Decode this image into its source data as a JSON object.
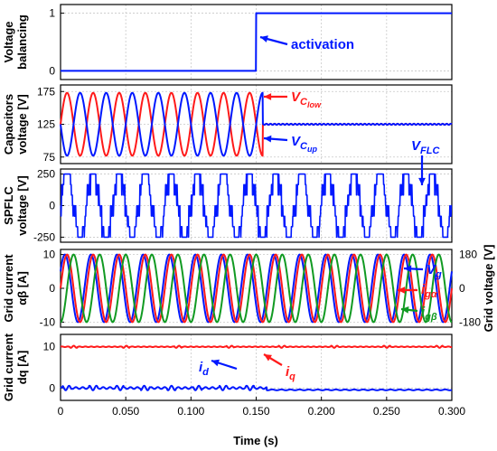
{
  "chart_data": {
    "type": "line",
    "xlabel": "Time (s)",
    "xlim": [
      0,
      0.3
    ],
    "xticks": [
      "0",
      "0.050",
      "0.100",
      "0.150",
      "0.200",
      "0.250",
      "0.300"
    ],
    "colors": {
      "blue": "#0018ff",
      "red": "#ff1a1a",
      "green": "#119a22"
    },
    "panels": [
      {
        "id": "voltage_balancing",
        "ylabel": [
          "Voltage",
          "balancing"
        ],
        "ylim": [
          -0.15,
          1.15
        ],
        "yticks": [
          "0",
          "1"
        ],
        "series": [
          {
            "color": "blue",
            "shape": "step",
            "step_time": 0.15,
            "before": 0,
            "after": 1
          }
        ],
        "annotation": {
          "text": "activation",
          "color": "blue"
        }
      },
      {
        "id": "capacitors_voltage",
        "ylabel": [
          "Capacitors",
          "voltage [V]"
        ],
        "ylim": [
          65,
          185
        ],
        "yticks": [
          "75",
          "125",
          "175"
        ],
        "series": [
          {
            "name": "V_C_low",
            "color": "red",
            "shape": "sine_then_flat",
            "mean": 125,
            "amplitude": 48,
            "freq_hz": 50,
            "settle_time": 0.155,
            "phase_deg": 0
          },
          {
            "name": "V_C_up",
            "color": "blue",
            "shape": "sine_then_flat",
            "mean": 125,
            "amplitude": 48,
            "freq_hz": 50,
            "settle_time": 0.155,
            "phase_deg": 180
          }
        ],
        "labels": [
          {
            "main": "V",
            "sub": "C",
            "subsub": "low",
            "color": "red"
          },
          {
            "main": "V",
            "sub": "C",
            "subsub": "up",
            "color": "blue"
          }
        ]
      },
      {
        "id": "spflc_voltage",
        "ylabel": [
          "SPFLC",
          "voltage [V]"
        ],
        "ylim": [
          -290,
          290
        ],
        "yticks": [
          "250",
          "0",
          "-250"
        ],
        "series": [
          {
            "name": "V_FLC",
            "color": "blue",
            "shape": "multilevel",
            "peak": 250,
            "freq_hz": 50
          }
        ],
        "labels": [
          {
            "main": "V",
            "sub": "FLC",
            "color": "blue"
          }
        ]
      },
      {
        "id": "grid_current",
        "ylabel": [
          "Grid current",
          "αβ [A]"
        ],
        "ylabel_right": "Grid voltage [V]",
        "ylim": [
          -11.5,
          11.5
        ],
        "yticks": [
          "10",
          "0",
          "-10"
        ],
        "yticks_right": [
          "180",
          "0",
          "-180"
        ],
        "series": [
          {
            "name": "V_g",
            "color": "blue",
            "shape": "sine",
            "amplitude": 10,
            "freq_hz": 50,
            "phase_deg": 30
          },
          {
            "name": "i_g_alpha",
            "color": "red",
            "shape": "sine",
            "amplitude": 10,
            "freq_hz": 50,
            "phase_deg": 0
          },
          {
            "name": "i_g_beta",
            "color": "green",
            "shape": "sine",
            "amplitude": 10,
            "freq_hz": 50,
            "phase_deg": -90
          }
        ],
        "labels": [
          {
            "main": "V",
            "sub": "g",
            "color": "blue"
          },
          {
            "main": "i",
            "sub": "gα",
            "color": "red"
          },
          {
            "main": "i",
            "sub": "gβ",
            "color": "green"
          }
        ]
      },
      {
        "id": "dq_current",
        "ylabel": [
          "Grid current",
          "dq [A]"
        ],
        "ylim": [
          -3,
          13
        ],
        "yticks": [
          "10",
          "0"
        ],
        "series": [
          {
            "name": "i_q",
            "color": "red",
            "shape": "flat_ripple",
            "level": 10,
            "ripple": 0.25
          },
          {
            "name": "i_d",
            "color": "blue",
            "shape": "flat_ripple_step",
            "level": 0,
            "ripple": 0.55,
            "step_time": 0.158,
            "after": -0.45
          }
        ],
        "labels": [
          {
            "main": "i",
            "sub": "d",
            "color": "blue"
          },
          {
            "main": "i",
            "sub": "q",
            "color": "red"
          }
        ]
      }
    ]
  }
}
